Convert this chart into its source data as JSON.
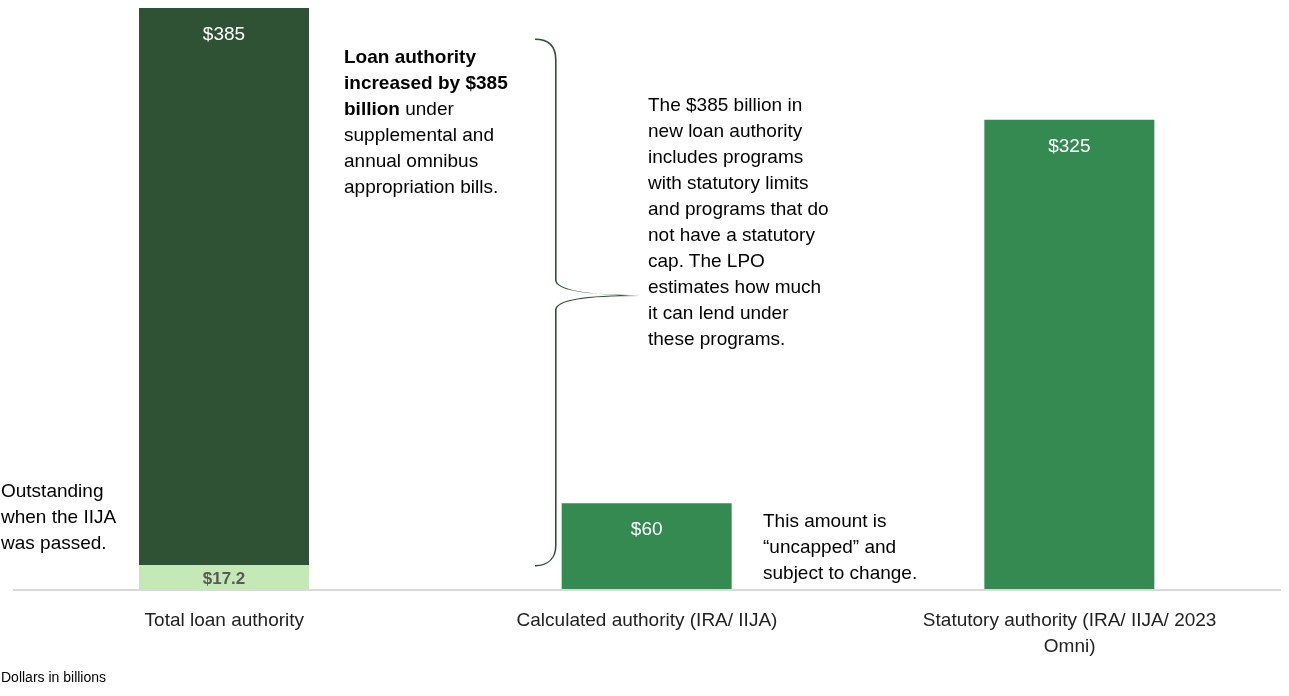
{
  "chart_data": {
    "type": "bar",
    "stacked": true,
    "categories": [
      "Total loan authority",
      "Calculated authority (IRA/ IIJA)",
      "Statutory authority (IRA/ IIJA/ 2023 Omni)"
    ],
    "series": [
      {
        "color": "#c5e8b7",
        "values": [
          17.2,
          null,
          null
        ],
        "value_labels": [
          "$17.2",
          null,
          null
        ]
      },
      {
        "color": "#358a52",
        "colors": [
          "#2e5233",
          "#358a52",
          "#358a52"
        ],
        "values": [
          385,
          60,
          325
        ],
        "value_labels": [
          "$385",
          "$60",
          "$325"
        ]
      }
    ],
    "annotations": [
      "Loan authority increased by $385 billion",
      "under supplemental and annual omnibus appropriation bills.",
      "The $385 billion in new loan authority includes programs with statutory limits and programs that do not have a statutory cap.  The LPO estimates how much it can lend under these programs.",
      "This amount is “uncapped” and subject to change.",
      "Outstanding when the IIJA was passed.",
      "Dollars in billions"
    ]
  }
}
